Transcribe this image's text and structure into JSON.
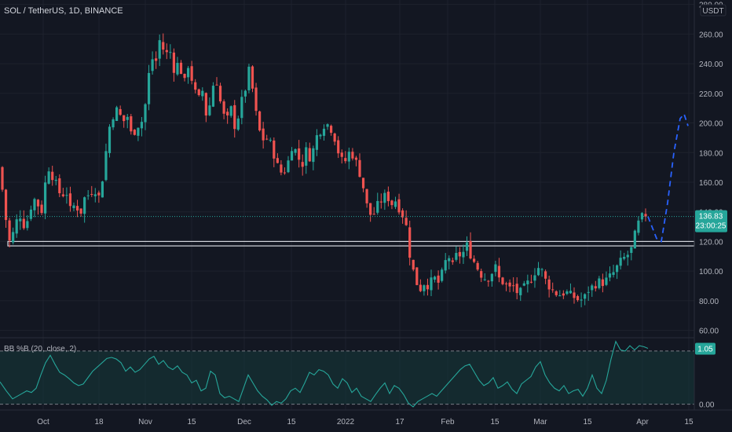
{
  "header": {
    "symbol": "SOL / TetherUS, 1D, BINANCE"
  },
  "price_axis": {
    "currency": "USDT",
    "last_price": "136.83",
    "countdown": "23:00:25"
  },
  "indicator": {
    "name": "BB %B (20, close, 2)",
    "value": "1.05",
    "zero_label": "0.00"
  },
  "colors": {
    "background": "#131722",
    "up": "#26a69a",
    "down": "#ef5350",
    "projection": "#2962ff",
    "indicator_line": "#26a69a",
    "indicator_fill": "#163a3a",
    "level_box": "#d1d4dc",
    "text": "#b2b5be"
  },
  "chart_data": {
    "type": "candlestick",
    "title": "SOL / TetherUS, 1D, BINANCE",
    "ylabel": "USDT",
    "ylim": [
      55,
      283
    ],
    "yticks": [
      "60.00",
      "80.00",
      "100.00",
      "120.00",
      "140.00",
      "160.00",
      "180.00",
      "200.00",
      "220.00",
      "240.00",
      "260.00",
      "280.00"
    ],
    "xticks": [
      "Oct",
      "18",
      "Nov",
      "15",
      "Dec",
      "15",
      "2022",
      "17",
      "Feb",
      "15",
      "Mar",
      "15",
      "Apr",
      "15"
    ],
    "support_zone": [
      117,
      120
    ],
    "close_path": [
      [
        0,
        170
      ],
      [
        6,
        140
      ],
      [
        12,
        120
      ],
      [
        18,
        127
      ],
      [
        24,
        140
      ],
      [
        30,
        131
      ],
      [
        36,
        135
      ],
      [
        42,
        150
      ],
      [
        48,
        145
      ],
      [
        54,
        140
      ],
      [
        60,
        172
      ],
      [
        66,
        165
      ],
      [
        72,
        158
      ],
      [
        78,
        150
      ],
      [
        84,
        155
      ],
      [
        90,
        140
      ],
      [
        96,
        146
      ],
      [
        102,
        138
      ],
      [
        108,
        150
      ],
      [
        114,
        152
      ],
      [
        120,
        156
      ],
      [
        126,
        150
      ],
      [
        132,
        167
      ],
      [
        138,
        195
      ],
      [
        144,
        205
      ],
      [
        150,
        210
      ],
      [
        156,
        200
      ],
      [
        162,
        205
      ],
      [
        168,
        190
      ],
      [
        174,
        198
      ],
      [
        180,
        200
      ],
      [
        186,
        215
      ],
      [
        192,
        245
      ],
      [
        198,
        240
      ],
      [
        204,
        258
      ],
      [
        210,
        245
      ],
      [
        216,
        250
      ],
      [
        222,
        235
      ],
      [
        228,
        242
      ],
      [
        234,
        225
      ],
      [
        240,
        240
      ],
      [
        246,
        225
      ],
      [
        252,
        215
      ],
      [
        258,
        222
      ],
      [
        264,
        200
      ],
      [
        270,
        225
      ],
      [
        276,
        228
      ],
      [
        282,
        210
      ],
      [
        288,
        200
      ],
      [
        294,
        210
      ],
      [
        300,
        195
      ],
      [
        306,
        212
      ],
      [
        312,
        222
      ],
      [
        318,
        238
      ],
      [
        324,
        212
      ],
      [
        330,
        195
      ],
      [
        336,
        188
      ],
      [
        342,
        190
      ],
      [
        348,
        180
      ],
      [
        354,
        170
      ],
      [
        360,
        165
      ],
      [
        366,
        172
      ],
      [
        372,
        185
      ],
      [
        378,
        180
      ],
      [
        384,
        170
      ],
      [
        390,
        182
      ],
      [
        396,
        175
      ],
      [
        402,
        190
      ],
      [
        408,
        195
      ],
      [
        414,
        200
      ],
      [
        420,
        198
      ],
      [
        426,
        190
      ],
      [
        432,
        178
      ],
      [
        438,
        172
      ],
      [
        444,
        180
      ],
      [
        450,
        178
      ],
      [
        456,
        170
      ],
      [
        462,
        158
      ],
      [
        468,
        142
      ],
      [
        474,
        136
      ],
      [
        480,
        144
      ],
      [
        486,
        148
      ],
      [
        492,
        152
      ],
      [
        498,
        145
      ],
      [
        504,
        148
      ],
      [
        510,
        140
      ],
      [
        516,
        135
      ],
      [
        522,
        110
      ],
      [
        528,
        96
      ],
      [
        534,
        87
      ],
      [
        540,
        92
      ],
      [
        546,
        90
      ],
      [
        552,
        96
      ],
      [
        558,
        92
      ],
      [
        564,
        100
      ],
      [
        570,
        112
      ],
      [
        576,
        103
      ],
      [
        582,
        112
      ],
      [
        588,
        110
      ],
      [
        594,
        118
      ],
      [
        600,
        110
      ],
      [
        606,
        104
      ],
      [
        612,
        98
      ],
      [
        618,
        95
      ],
      [
        624,
        96
      ],
      [
        630,
        104
      ],
      [
        636,
        94
      ],
      [
        642,
        92
      ],
      [
        648,
        88
      ],
      [
        654,
        90
      ],
      [
        660,
        84
      ],
      [
        666,
        88
      ],
      [
        672,
        92
      ],
      [
        678,
        96
      ],
      [
        684,
        103
      ],
      [
        690,
        100
      ],
      [
        696,
        92
      ],
      [
        702,
        88
      ],
      [
        708,
        85
      ],
      [
        714,
        84
      ],
      [
        720,
        86
      ],
      [
        726,
        84
      ],
      [
        732,
        82
      ],
      [
        738,
        80
      ],
      [
        744,
        82
      ],
      [
        750,
        88
      ],
      [
        756,
        90
      ],
      [
        762,
        93
      ],
      [
        768,
        92
      ],
      [
        774,
        95
      ],
      [
        780,
        98
      ],
      [
        786,
        103
      ],
      [
        792,
        108
      ],
      [
        798,
        110
      ],
      [
        804,
        115
      ],
      [
        810,
        128
      ],
      [
        816,
        137
      ],
      [
        822,
        135
      ],
      [
        825,
        136.83
      ]
    ],
    "projection_path": [
      [
        825,
        136.83
      ],
      [
        836,
        122
      ],
      [
        842,
        120
      ],
      [
        850,
        146
      ],
      [
        858,
        180
      ],
      [
        866,
        203
      ],
      [
        871,
        206
      ],
      [
        876,
        198
      ]
    ],
    "last_close": 136.83,
    "indicator_ylim": [
      -0.08,
      1.22
    ],
    "indicator_levels": [
      0,
      1
    ],
    "indicator_path": [
      [
        0,
        0.42
      ],
      [
        8,
        0.25
      ],
      [
        16,
        0.1
      ],
      [
        22,
        0.15
      ],
      [
        28,
        0.2
      ],
      [
        34,
        0.25
      ],
      [
        40,
        0.22
      ],
      [
        46,
        0.3
      ],
      [
        52,
        0.55
      ],
      [
        58,
        0.78
      ],
      [
        64,
        0.92
      ],
      [
        70,
        0.75
      ],
      [
        76,
        0.6
      ],
      [
        82,
        0.55
      ],
      [
        88,
        0.48
      ],
      [
        94,
        0.4
      ],
      [
        100,
        0.35
      ],
      [
        106,
        0.38
      ],
      [
        112,
        0.5
      ],
      [
        118,
        0.62
      ],
      [
        124,
        0.7
      ],
      [
        130,
        0.78
      ],
      [
        136,
        0.86
      ],
      [
        142,
        0.88
      ],
      [
        148,
        0.85
      ],
      [
        154,
        0.78
      ],
      [
        160,
        0.62
      ],
      [
        166,
        0.7
      ],
      [
        172,
        0.6
      ],
      [
        178,
        0.65
      ],
      [
        184,
        0.75
      ],
      [
        190,
        0.85
      ],
      [
        196,
        0.9
      ],
      [
        202,
        0.75
      ],
      [
        208,
        0.82
      ],
      [
        214,
        0.7
      ],
      [
        220,
        0.65
      ],
      [
        226,
        0.72
      ],
      [
        232,
        0.6
      ],
      [
        238,
        0.55
      ],
      [
        244,
        0.4
      ],
      [
        250,
        0.45
      ],
      [
        256,
        0.25
      ],
      [
        262,
        0.3
      ],
      [
        268,
        0.62
      ],
      [
        274,
        0.55
      ],
      [
        280,
        0.2
      ],
      [
        286,
        0.12
      ],
      [
        292,
        0.15
      ],
      [
        298,
        0.1
      ],
      [
        304,
        0.05
      ],
      [
        310,
        0.3
      ],
      [
        316,
        0.55
      ],
      [
        322,
        0.4
      ],
      [
        328,
        0.25
      ],
      [
        334,
        0.15
      ],
      [
        340,
        0.08
      ],
      [
        346,
        -0.02
      ],
      [
        352,
        0.05
      ],
      [
        358,
        0.02
      ],
      [
        364,
        0.1
      ],
      [
        370,
        0.25
      ],
      [
        376,
        0.3
      ],
      [
        382,
        0.22
      ],
      [
        388,
        0.4
      ],
      [
        394,
        0.6
      ],
      [
        400,
        0.55
      ],
      [
        406,
        0.65
      ],
      [
        412,
        0.62
      ],
      [
        418,
        0.55
      ],
      [
        424,
        0.38
      ],
      [
        430,
        0.3
      ],
      [
        436,
        0.48
      ],
      [
        442,
        0.4
      ],
      [
        448,
        0.22
      ],
      [
        454,
        0.3
      ],
      [
        460,
        0.15
      ],
      [
        466,
        0.1
      ],
      [
        472,
        0.05
      ],
      [
        478,
        0.18
      ],
      [
        484,
        0.3
      ],
      [
        490,
        0.4
      ],
      [
        496,
        0.2
      ],
      [
        502,
        0.35
      ],
      [
        508,
        0.3
      ],
      [
        514,
        0.18
      ],
      [
        520,
        0.02
      ],
      [
        526,
        -0.05
      ],
      [
        532,
        0.05
      ],
      [
        538,
        0.1
      ],
      [
        544,
        0.15
      ],
      [
        550,
        0.2
      ],
      [
        556,
        0.15
      ],
      [
        562,
        0.25
      ],
      [
        568,
        0.35
      ],
      [
        574,
        0.45
      ],
      [
        580,
        0.55
      ],
      [
        586,
        0.65
      ],
      [
        592,
        0.72
      ],
      [
        598,
        0.75
      ],
      [
        604,
        0.6
      ],
      [
        610,
        0.45
      ],
      [
        616,
        0.35
      ],
      [
        622,
        0.4
      ],
      [
        628,
        0.5
      ],
      [
        634,
        0.3
      ],
      [
        640,
        0.35
      ],
      [
        646,
        0.42
      ],
      [
        652,
        0.28
      ],
      [
        658,
        0.2
      ],
      [
        664,
        0.38
      ],
      [
        670,
        0.45
      ],
      [
        676,
        0.52
      ],
      [
        682,
        0.7
      ],
      [
        688,
        0.8
      ],
      [
        694,
        0.55
      ],
      [
        700,
        0.4
      ],
      [
        706,
        0.3
      ],
      [
        712,
        0.25
      ],
      [
        718,
        0.35
      ],
      [
        724,
        0.2
      ],
      [
        730,
        0.25
      ],
      [
        736,
        0.28
      ],
      [
        742,
        0.15
      ],
      [
        748,
        0.3
      ],
      [
        754,
        0.55
      ],
      [
        760,
        0.3
      ],
      [
        766,
        0.2
      ],
      [
        772,
        0.45
      ],
      [
        778,
        0.85
      ],
      [
        784,
        1.18
      ],
      [
        790,
        1.02
      ],
      [
        796,
        1.0
      ],
      [
        802,
        1.1
      ],
      [
        808,
        1.02
      ],
      [
        814,
        1.1
      ],
      [
        820,
        1.08
      ],
      [
        825,
        1.05
      ]
    ]
  }
}
